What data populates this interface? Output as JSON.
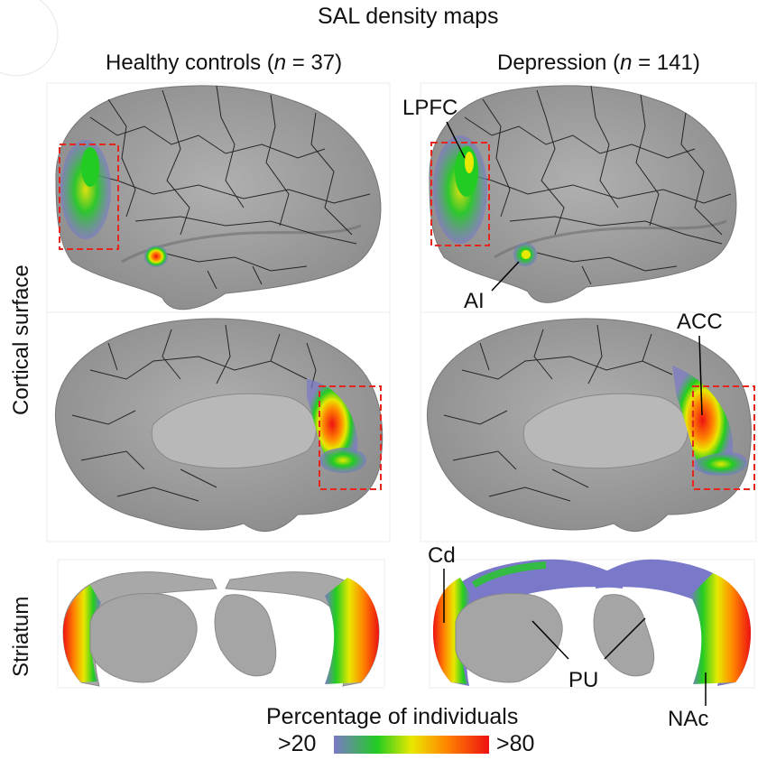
{
  "figure": {
    "title": "SAL density maps",
    "columns": [
      {
        "label_pre": "Healthy controls (",
        "label_n": "n",
        "label_post": " = 37)"
      },
      {
        "label_pre": "Depression (",
        "label_n": "n",
        "label_post": " = 141)"
      }
    ],
    "rows": [
      {
        "label": "Cortical surface"
      },
      {
        "label": "Striatum"
      }
    ],
    "annotations": {
      "lpfc": "LPFC",
      "ai": "AI",
      "acc": "ACC",
      "cd": "Cd",
      "pu": "PU",
      "nac": "NAc"
    },
    "legend": {
      "title": "Percentage of individuals",
      "min_label": ">20",
      "max_label": ">80",
      "colors": [
        "#7a78c8",
        "#22cc22",
        "#e8e800",
        "#ff8800",
        "#ee1111"
      ]
    },
    "colors": {
      "brain": "#a3a3a3",
      "brain_dark": "#8a8a8a",
      "parcel_line": "#111111",
      "roi_box": "#e5261f"
    }
  }
}
